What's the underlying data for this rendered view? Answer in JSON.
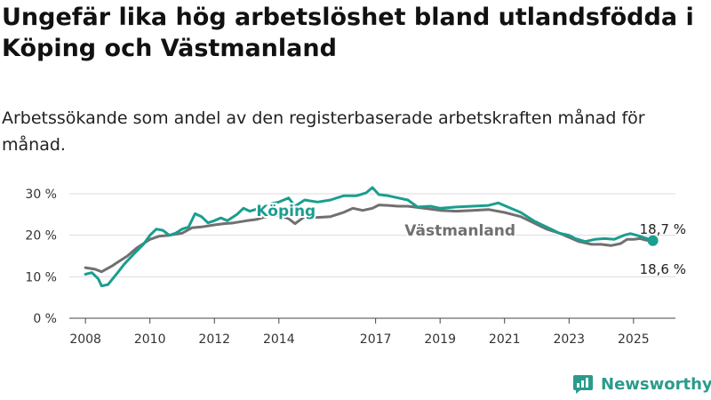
{
  "title": "Ungefär lika hög arbetslöshet bland utlandsfödda i Köping och Västmanland",
  "subtitle": "Arbetssökande som andel av den registerbaserade arbetskraften månad för månad.",
  "brand": {
    "name": "Newsworthy",
    "icon": "newsworthy-logo-icon"
  },
  "colors": {
    "koping": "#1a9e8f",
    "vastmanland": "#707070",
    "grid": "#dddddd"
  },
  "chart_data": {
    "type": "line",
    "title": "Ungefär lika hög arbetslöshet bland utlandsfödda i Köping och Västmanland",
    "subtitle": "Arbetssökande som andel av den registerbaserade arbetskraften månad för månad.",
    "xlabel": "",
    "ylabel": "",
    "ylim": [
      0,
      30
    ],
    "xlim": [
      2007.5,
      2026.3
    ],
    "yticks": [
      0,
      10,
      20,
      30
    ],
    "ytick_labels": [
      "0 %",
      "10 %",
      "20 %",
      "30 %"
    ],
    "xticks": [
      2008,
      2010,
      2012,
      2014,
      2017,
      2019,
      2021,
      2023,
      2025
    ],
    "xtick_labels": [
      "2008",
      "2010",
      "2012",
      "2014",
      "2017",
      "2019",
      "2021",
      "2023",
      "2025"
    ],
    "grid": true,
    "series": [
      {
        "name": "Köping",
        "color": "#1a9e8f",
        "last_value_label": "18,7 %",
        "points": [
          [
            2008.0,
            10.6
          ],
          [
            2008.2,
            11.0
          ],
          [
            2008.4,
            9.5
          ],
          [
            2008.5,
            7.8
          ],
          [
            2008.7,
            8.1
          ],
          [
            2009.0,
            11.0
          ],
          [
            2009.2,
            13.0
          ],
          [
            2009.5,
            15.5
          ],
          [
            2009.8,
            17.8
          ],
          [
            2010.0,
            20.0
          ],
          [
            2010.2,
            21.5
          ],
          [
            2010.4,
            21.2
          ],
          [
            2010.6,
            20.0
          ],
          [
            2010.8,
            20.5
          ],
          [
            2011.0,
            21.5
          ],
          [
            2011.2,
            22.0
          ],
          [
            2011.4,
            25.2
          ],
          [
            2011.6,
            24.5
          ],
          [
            2011.8,
            23.0
          ],
          [
            2012.0,
            23.5
          ],
          [
            2012.2,
            24.2
          ],
          [
            2012.4,
            23.5
          ],
          [
            2012.7,
            25.0
          ],
          [
            2012.9,
            26.5
          ],
          [
            2013.1,
            25.8
          ],
          [
            2013.4,
            26.5
          ],
          [
            2013.7,
            27.5
          ],
          [
            2014.0,
            28.0
          ],
          [
            2014.3,
            29.0
          ],
          [
            2014.5,
            27.0
          ],
          [
            2014.8,
            28.5
          ],
          [
            2015.2,
            28.0
          ],
          [
            2015.6,
            28.5
          ],
          [
            2016.0,
            29.5
          ],
          [
            2016.4,
            29.5
          ],
          [
            2016.7,
            30.2
          ],
          [
            2016.9,
            31.5
          ],
          [
            2017.1,
            29.8
          ],
          [
            2017.4,
            29.5
          ],
          [
            2017.7,
            29.0
          ],
          [
            2018.0,
            28.5
          ],
          [
            2018.3,
            26.8
          ],
          [
            2018.7,
            27.0
          ],
          [
            2019.0,
            26.5
          ],
          [
            2019.5,
            26.8
          ],
          [
            2020.0,
            27.0
          ],
          [
            2020.5,
            27.2
          ],
          [
            2020.8,
            27.8
          ],
          [
            2021.1,
            26.8
          ],
          [
            2021.5,
            25.5
          ],
          [
            2021.9,
            23.5
          ],
          [
            2022.3,
            22.0
          ],
          [
            2022.7,
            20.5
          ],
          [
            2023.0,
            20.0
          ],
          [
            2023.2,
            19.2
          ],
          [
            2023.5,
            18.5
          ],
          [
            2023.8,
            19.0
          ],
          [
            2024.1,
            19.2
          ],
          [
            2024.4,
            19.0
          ],
          [
            2024.7,
            20.0
          ],
          [
            2024.9,
            20.4
          ],
          [
            2025.1,
            20.0
          ],
          [
            2025.3,
            19.5
          ],
          [
            2025.5,
            19.0
          ],
          [
            2025.6,
            18.7
          ]
        ]
      },
      {
        "name": "Västmanland",
        "color": "#707070",
        "last_value_label": "18,6 %",
        "points": [
          [
            2008.0,
            12.2
          ],
          [
            2008.3,
            11.8
          ],
          [
            2008.5,
            11.2
          ],
          [
            2008.8,
            12.5
          ],
          [
            2009.0,
            13.5
          ],
          [
            2009.3,
            15.0
          ],
          [
            2009.6,
            17.0
          ],
          [
            2010.0,
            19.0
          ],
          [
            2010.3,
            19.8
          ],
          [
            2010.6,
            20.0
          ],
          [
            2011.0,
            20.5
          ],
          [
            2011.3,
            21.8
          ],
          [
            2011.6,
            22.0
          ],
          [
            2012.0,
            22.5
          ],
          [
            2012.3,
            22.8
          ],
          [
            2012.6,
            23.0
          ],
          [
            2013.0,
            23.5
          ],
          [
            2013.3,
            23.8
          ],
          [
            2013.6,
            24.5
          ],
          [
            2014.0,
            24.8
          ],
          [
            2014.3,
            24.0
          ],
          [
            2014.5,
            22.8
          ],
          [
            2014.8,
            24.5
          ],
          [
            2015.2,
            24.3
          ],
          [
            2015.6,
            24.5
          ],
          [
            2016.0,
            25.5
          ],
          [
            2016.3,
            26.5
          ],
          [
            2016.6,
            26.0
          ],
          [
            2016.9,
            26.5
          ],
          [
            2017.1,
            27.3
          ],
          [
            2017.4,
            27.2
          ],
          [
            2017.7,
            27.0
          ],
          [
            2018.0,
            27.0
          ],
          [
            2018.5,
            26.5
          ],
          [
            2019.0,
            26.0
          ],
          [
            2019.5,
            25.8
          ],
          [
            2020.0,
            26.0
          ],
          [
            2020.5,
            26.2
          ],
          [
            2021.0,
            25.5
          ],
          [
            2021.5,
            24.5
          ],
          [
            2021.9,
            23.0
          ],
          [
            2022.3,
            21.5
          ],
          [
            2022.7,
            20.5
          ],
          [
            2023.0,
            19.5
          ],
          [
            2023.3,
            18.5
          ],
          [
            2023.7,
            17.8
          ],
          [
            2024.0,
            17.8
          ],
          [
            2024.3,
            17.5
          ],
          [
            2024.6,
            18.0
          ],
          [
            2024.8,
            19.0
          ],
          [
            2025.0,
            19.0
          ],
          [
            2025.2,
            19.2
          ],
          [
            2025.4,
            18.8
          ],
          [
            2025.6,
            18.6
          ]
        ]
      }
    ]
  }
}
